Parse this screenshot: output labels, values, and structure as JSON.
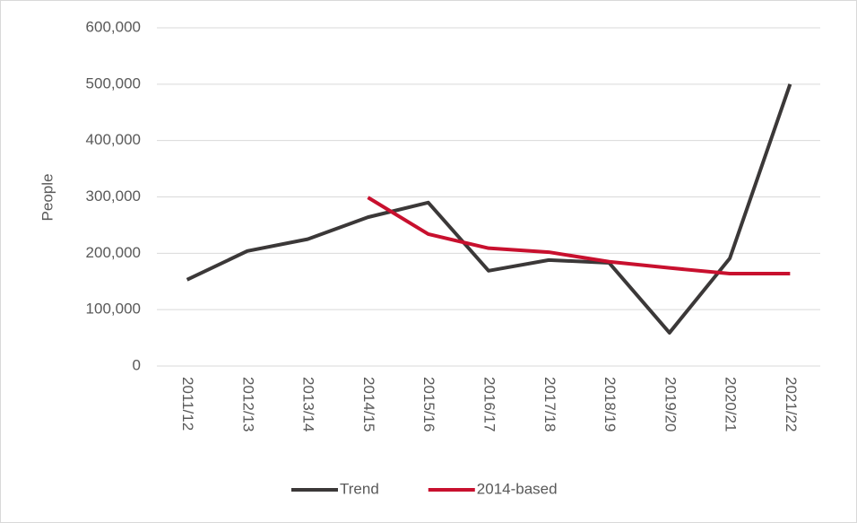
{
  "chart_data": {
    "type": "line",
    "y_label": "People",
    "categories": [
      "2011/12",
      "2012/13",
      "2013/14",
      "2014/15",
      "2015/16",
      "2016/17",
      "2017/18",
      "2018/19",
      "2019/20",
      "2020/21",
      "2021/22"
    ],
    "series": [
      {
        "name": "Trend",
        "color": "#3b3838",
        "values": [
          153000,
          204000,
          225000,
          264000,
          290000,
          169000,
          188000,
          183000,
          59000,
          191000,
          500000
        ]
      },
      {
        "name": "2014-based",
        "color": "#c8102e",
        "values": [
          null,
          null,
          null,
          299000,
          234000,
          209000,
          202000,
          185000,
          174000,
          164000,
          164000
        ]
      }
    ],
    "ylim": [
      0,
      600000
    ],
    "yticks": [
      0,
      {
        "value": 100000,
        "label": "100,000"
      },
      {
        "value": 200000,
        "label": "200,000"
      },
      {
        "value": 300000,
        "label": "300,000"
      },
      {
        "value": 400000,
        "label": "400,000"
      },
      {
        "value": 500000,
        "label": "500,000"
      },
      {
        "value": 600000,
        "label": "600,000"
      }
    ],
    "grid": true,
    "legend": "bottom"
  }
}
